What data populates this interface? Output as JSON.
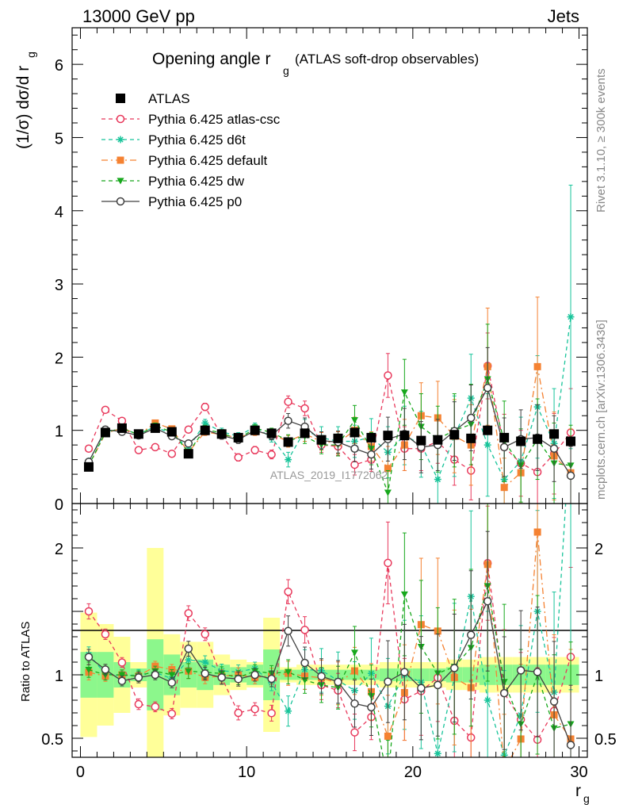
{
  "header": {
    "left": "13000 GeV pp",
    "right": "Jets"
  },
  "title": {
    "main": "Opening angle r",
    "sub": "g",
    "extra": "(ATLAS soft-drop observables)"
  },
  "side_labels": {
    "rivet": "Rivet 3.1.10, ≥ 300k events",
    "mcplots": "mcplots.cern.ch [arXiv:1306.3436]"
  },
  "watermark": "ATLAS_2019_I1772062",
  "axes": {
    "ylabel_top": "(1/σ) dσ/d r",
    "ylabel_top_sub": "g",
    "ylabel_bottom": "Ratio to ATLAS",
    "xlabel": "r",
    "xlabel_sub": "g"
  },
  "colors": {
    "atlas": "#000000",
    "atlas_csc": "#e8385b",
    "d6t": "#18c49a",
    "default": "#f58232",
    "dw": "#17a81c",
    "p0": "#404040",
    "band_inner": "#8cf78c",
    "band_outer": "#ffff99"
  },
  "chart_data": {
    "type": "scatter",
    "xlim": [
      -0.5,
      30.5
    ],
    "ylim_main": [
      0,
      6.5
    ],
    "ylim_ratio": [
      0.35,
      2.35
    ],
    "x_ticks": [
      0,
      10,
      20,
      30
    ],
    "y_ticks_main": [
      0,
      1,
      2,
      3,
      4,
      5,
      6
    ],
    "y_ticks_ratio": [
      0.5,
      1,
      2
    ],
    "x": [
      0.5,
      1.5,
      2.5,
      3.5,
      4.5,
      5.5,
      6.5,
      7.5,
      8.5,
      9.5,
      10.5,
      11.5,
      12.5,
      13.5,
      14.5,
      15.5,
      16.5,
      17.5,
      18.5,
      19.5,
      20.5,
      21.5,
      22.5,
      23.5,
      24.5,
      25.5,
      26.5,
      27.5,
      28.5,
      29.5
    ],
    "legend_position": "top-left",
    "series": [
      {
        "key": "atlas",
        "name": "ATLAS",
        "marker": "square",
        "line": "none",
        "values": [
          0.5,
          0.97,
          1.03,
          0.95,
          1.03,
          0.98,
          0.68,
          1.0,
          0.95,
          0.9,
          1.0,
          0.96,
          0.84,
          0.96,
          0.87,
          0.89,
          0.97,
          0.9,
          0.93,
          0.93,
          0.86,
          0.87,
          0.94,
          0.89,
          1.0,
          0.9,
          0.85,
          0.88,
          0.95,
          0.85
        ],
        "errors": [
          0.02,
          0.02,
          0.02,
          0.02,
          0.02,
          0.02,
          0.02,
          0.02,
          0.02,
          0.02,
          0.02,
          0.02,
          0.02,
          0.02,
          0.03,
          0.03,
          0.03,
          0.03,
          0.03,
          0.03,
          0.03,
          0.03,
          0.04,
          0.04,
          0.04,
          0.04,
          0.04,
          0.04,
          0.05,
          0.05
        ]
      },
      {
        "key": "atlas_csc",
        "name": "Pythia 6.425 atlas-csc",
        "marker": "circle-open",
        "line": "dashed",
        "values": [
          0.75,
          1.28,
          1.13,
          0.73,
          0.77,
          0.68,
          1.01,
          1.32,
          0.93,
          0.63,
          0.73,
          0.67,
          1.39,
          1.3,
          0.8,
          0.78,
          0.53,
          0.6,
          1.75,
          0.75,
          0.75,
          0.85,
          0.6,
          0.45,
          1.88,
          0.77,
          0.55,
          0.43,
          0.68,
          0.97
        ],
        "errors": [
          0.03,
          0.04,
          0.04,
          0.04,
          0.04,
          0.04,
          0.04,
          0.05,
          0.05,
          0.05,
          0.05,
          0.06,
          0.08,
          0.1,
          0.1,
          0.12,
          0.14,
          0.16,
          0.3,
          0.3,
          0.3,
          0.3,
          0.35,
          0.4,
          0.45,
          0.45,
          0.45,
          0.5,
          0.55,
          0.6
        ]
      },
      {
        "key": "d6t",
        "name": "Pythia 6.425 d6t",
        "marker": "star",
        "line": "dashed",
        "values": [
          0.58,
          0.98,
          1.02,
          0.95,
          1.05,
          0.95,
          0.76,
          1.1,
          0.98,
          0.92,
          1.05,
          0.9,
          0.6,
          1.0,
          0.9,
          0.85,
          0.85,
          0.91,
          0.7,
          0.93,
          0.81,
          0.33,
          0.92,
          1.44,
          0.8,
          0.33,
          0.58,
          1.32,
          0.82,
          2.55
        ],
        "errors": [
          0.03,
          0.04,
          0.04,
          0.04,
          0.04,
          0.04,
          0.04,
          0.05,
          0.05,
          0.05,
          0.05,
          0.06,
          0.1,
          0.15,
          0.15,
          0.2,
          0.22,
          0.25,
          0.35,
          0.4,
          0.45,
          0.45,
          0.55,
          0.6,
          0.7,
          0.6,
          0.6,
          0.7,
          0.75,
          1.8
        ]
      },
      {
        "key": "default",
        "name": "Pythia 6.425 default",
        "marker": "square",
        "line": "dashdot",
        "values": [
          0.51,
          0.96,
          1.03,
          0.94,
          1.1,
          1.02,
          0.7,
          0.98,
          0.94,
          0.9,
          0.98,
          0.95,
          0.85,
          0.95,
          0.85,
          0.83,
          1.0,
          0.78,
          0.48,
          0.8,
          1.2,
          1.17,
          0.92,
          0.8,
          1.87,
          0.22,
          0.42,
          1.87,
          0.65,
          0.42
        ],
        "errors": [
          0.03,
          0.04,
          0.04,
          0.04,
          0.04,
          0.04,
          0.04,
          0.05,
          0.05,
          0.05,
          0.05,
          0.06,
          0.08,
          0.1,
          0.12,
          0.15,
          0.18,
          0.2,
          0.3,
          0.35,
          0.45,
          0.5,
          0.5,
          0.55,
          0.8,
          0.4,
          0.5,
          0.95,
          0.6,
          0.6
        ]
      },
      {
        "key": "dw",
        "name": "Pythia 6.425 dw",
        "marker": "triangle-down",
        "line": "dashed",
        "values": [
          0.52,
          0.97,
          1.03,
          0.94,
          1.06,
          0.98,
          0.7,
          1.02,
          0.96,
          0.88,
          1.03,
          0.97,
          0.86,
          0.92,
          0.8,
          0.8,
          1.14,
          0.75,
          0.15,
          1.52,
          1.05,
          0.88,
          1.0,
          1.08,
          1.7,
          0.85,
          0.52,
          0.88,
          0.55,
          0.52
        ],
        "errors": [
          0.03,
          0.04,
          0.04,
          0.04,
          0.04,
          0.04,
          0.04,
          0.05,
          0.05,
          0.05,
          0.05,
          0.06,
          0.08,
          0.1,
          0.12,
          0.15,
          0.2,
          0.22,
          0.3,
          0.45,
          0.45,
          0.45,
          0.5,
          0.55,
          0.75,
          0.55,
          0.5,
          0.55,
          0.55,
          0.55
        ]
      },
      {
        "key": "p0",
        "name": "Pythia 6.425 p0",
        "marker": "circle-open",
        "line": "solid",
        "values": [
          0.57,
          1.01,
          0.98,
          0.93,
          1.03,
          0.92,
          0.82,
          1.01,
          0.93,
          0.87,
          1.0,
          0.93,
          1.13,
          1.05,
          0.86,
          0.84,
          0.75,
          0.67,
          0.88,
          0.95,
          0.77,
          0.8,
          0.99,
          1.17,
          1.58,
          0.77,
          0.88,
          0.9,
          0.75,
          0.38
        ],
        "errors": [
          0.03,
          0.04,
          0.04,
          0.04,
          0.04,
          0.04,
          0.04,
          0.05,
          0.05,
          0.05,
          0.05,
          0.06,
          0.1,
          0.12,
          0.12,
          0.15,
          0.18,
          0.2,
          0.3,
          0.35,
          0.35,
          0.35,
          0.4,
          0.45,
          0.55,
          0.4,
          0.4,
          0.45,
          0.45,
          0.4
        ]
      }
    ],
    "ratio_bands": {
      "inner": [
        0.18,
        0.18,
        0.1,
        0.05,
        0.28,
        0.16,
        0.1,
        0.12,
        0.08,
        0.06,
        0.08,
        0.2,
        0.04,
        0.04,
        0.04,
        0.04,
        0.04,
        0.04,
        0.05,
        0.05,
        0.05,
        0.05,
        0.06,
        0.06,
        0.08,
        0.08,
        0.08,
        0.08,
        0.08,
        0.08
      ],
      "outer": [
        0.49,
        0.4,
        0.3,
        0.1,
        1.0,
        0.32,
        0.26,
        0.26,
        0.16,
        0.12,
        0.1,
        0.45,
        0.06,
        0.08,
        0.08,
        0.08,
        0.08,
        0.08,
        0.1,
        0.1,
        0.1,
        0.1,
        0.12,
        0.12,
        0.14,
        0.14,
        0.14,
        0.14,
        0.14,
        0.14
      ]
    }
  }
}
